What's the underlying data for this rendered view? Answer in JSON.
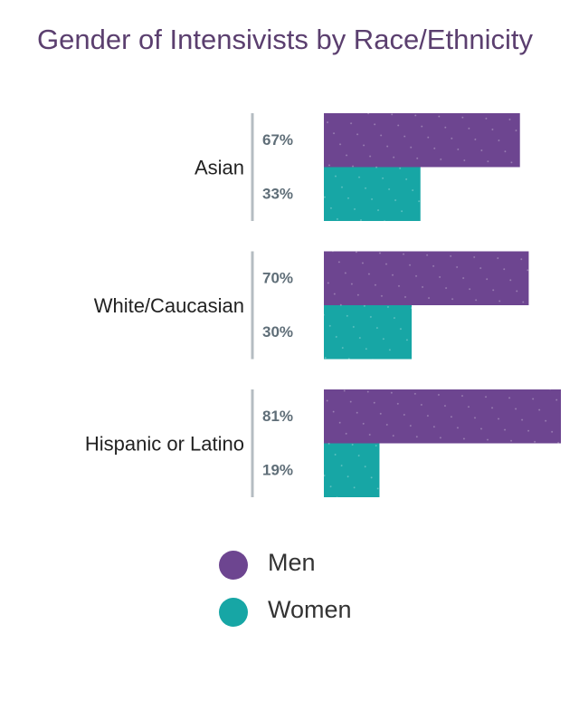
{
  "chart_data": {
    "type": "bar",
    "orientation": "horizontal",
    "title": "Gender of Intensivists by Race/Ethnicity",
    "categories": [
      "Asian",
      "White/Caucasian",
      "Hispanic or Latino"
    ],
    "series": [
      {
        "name": "Men",
        "color": "#6d4590",
        "values": [
          67,
          70,
          81
        ],
        "value_labels": [
          "67%",
          "70%",
          "81%"
        ]
      },
      {
        "name": "Women",
        "color": "#17a6a5",
        "values": [
          33,
          30,
          19
        ],
        "value_labels": [
          "33%",
          "30%",
          "19%"
        ]
      }
    ],
    "legend": "bottom"
  }
}
